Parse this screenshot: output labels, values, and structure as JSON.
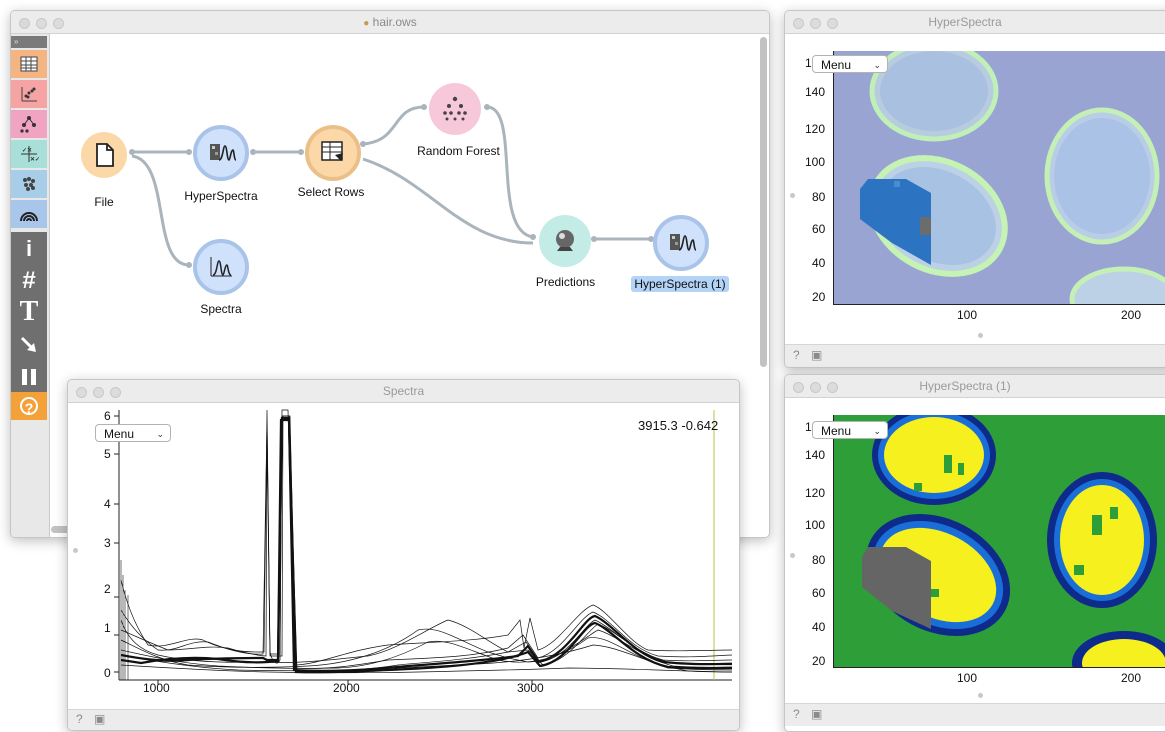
{
  "canvas_window": {
    "title": "hair.ows",
    "nodes": [
      {
        "id": "file",
        "label": "File"
      },
      {
        "id": "hyperspectra",
        "label": "HyperSpectra"
      },
      {
        "id": "select_rows",
        "label": "Select Rows"
      },
      {
        "id": "random_forest",
        "label": "Random Forest"
      },
      {
        "id": "predictions",
        "label": "Predictions"
      },
      {
        "id": "hyperspectra1",
        "label": "HyperSpectra (1)"
      },
      {
        "id": "spectra",
        "label": "Spectra"
      }
    ],
    "toolbar": {
      "info": "i",
      "grid": "#",
      "text": "T",
      "help": "?"
    }
  },
  "hyper1_window": {
    "title": "HyperSpectra",
    "menu_label": "Menu",
    "y_ticks": [
      "140",
      "120",
      "100",
      "80",
      "60",
      "40",
      "20"
    ],
    "y_partial_tick": "1",
    "x_ticks": [
      "100",
      "200"
    ]
  },
  "hyper2_window": {
    "title": "HyperSpectra (1)",
    "menu_label": "Menu",
    "y_ticks": [
      "140",
      "120",
      "100",
      "80",
      "60",
      "40",
      "20"
    ],
    "y_partial_tick": "1",
    "x_ticks": [
      "100",
      "200"
    ]
  },
  "spectra_window": {
    "title": "Spectra",
    "menu_label": "Menu",
    "coordinate_readout": "3915.3 -0.642",
    "y_ticks": [
      "6",
      "5",
      "4",
      "3",
      "2",
      "1",
      "0"
    ],
    "x_ticks": [
      "1000",
      "2000",
      "3000"
    ]
  },
  "colors": {
    "file_node": "#fcd8a8",
    "hyperspectra_node": "#cfe1fb",
    "select_node": "#fcd8a8",
    "random_forest_node": "#f7c8da",
    "predictions_node": "#c4ece7",
    "selection_highlight": "#b3d3f7"
  }
}
